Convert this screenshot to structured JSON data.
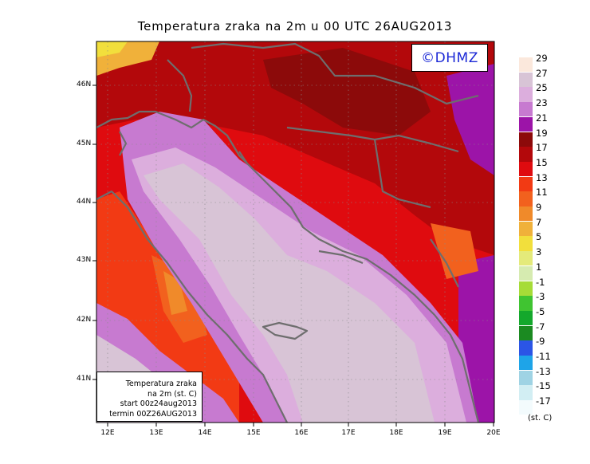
{
  "title": "Temperatura zraka na 2m u 00 UTC 26AUG2013",
  "logo_text": "©DHMZ",
  "info_box": {
    "line1": "Temperatura zraka",
    "line2": "na 2m (st. C)",
    "line3": "start 00z24aug2013",
    "line4": "termin 00Z26AUG2013"
  },
  "lat_ticks": [
    "46N",
    "45N",
    "44N",
    "43N",
    "42N",
    "41N"
  ],
  "lon_ticks": [
    "12E",
    "13E",
    "14E",
    "15E",
    "16E",
    "17E",
    "18E",
    "19E",
    "20E"
  ],
  "legend": {
    "units": "(st. C)",
    "labels": [
      "29",
      "27",
      "25",
      "23",
      "21",
      "19",
      "17",
      "15",
      "13",
      "11",
      "9",
      "7",
      "5",
      "3",
      "1",
      "-1",
      "-3",
      "-5",
      "-7",
      "-9",
      "-11",
      "-13",
      "-15",
      "-17"
    ],
    "colors": [
      "#fbe8dc",
      "#d8c4d6",
      "#dcaedd",
      "#c77ad0",
      "#9c14a8",
      "#8c0a0a",
      "#b3080b",
      "#df0b0f",
      "#f23a14",
      "#f2611e",
      "#f08a2a",
      "#f0b13a",
      "#f2df3c",
      "#e4ea7a",
      "#d6ebb0",
      "#a6dc37",
      "#40c431",
      "#14a82c",
      "#1b8a21",
      "#2b55e6",
      "#1ea4e8",
      "#9fd3e4",
      "#d2eef3",
      "#f3fbfd"
    ]
  },
  "colors": {
    "coastline": "#6e6e6e",
    "graticule": "#8a8a8a",
    "logo_text": "#1b28d6"
  }
}
